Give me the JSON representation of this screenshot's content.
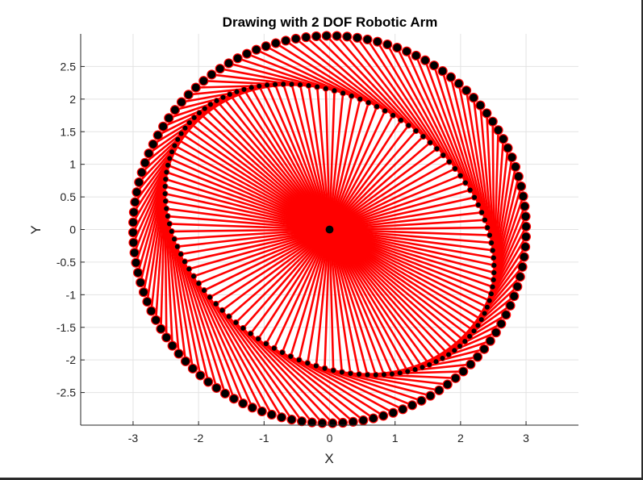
{
  "chart_data": {
    "type": "line",
    "title": "Drawing with 2 DOF Robotic Arm",
    "xlabel": "X",
    "ylabel": "Y",
    "xlim": [
      -3.8,
      3.8
    ],
    "ylim": [
      -3.0,
      3.0
    ],
    "xticks": [
      -3,
      -2,
      -1,
      0,
      1,
      2,
      3
    ],
    "yticks": [
      2.5,
      2,
      1.5,
      1,
      0.5,
      0,
      -0.5,
      -1,
      -1.5,
      -2,
      -2.5
    ],
    "xtick_labels": [
      "-3",
      "-2",
      "-1",
      "0",
      "1",
      "2",
      "3"
    ],
    "ytick_labels": [
      "2.5",
      "2",
      "1.5",
      "1",
      "0.5",
      "0",
      "-0.5",
      "-1",
      "-1.5",
      "-2",
      "-2.5"
    ],
    "grid": true,
    "base": {
      "x": 0,
      "y": 0
    },
    "link_lengths": [
      2,
      1
    ],
    "trajectory": {
      "a": 3,
      "b": 2.97,
      "elbow_radius_x": 2.7,
      "elbow_radius_y": 2.0,
      "elbow_tilt_deg": -33
    },
    "num_configurations": 120,
    "arm_color": "#ff0000",
    "joint_color": "#000000",
    "joint_edge_color": "#ff0000"
  }
}
